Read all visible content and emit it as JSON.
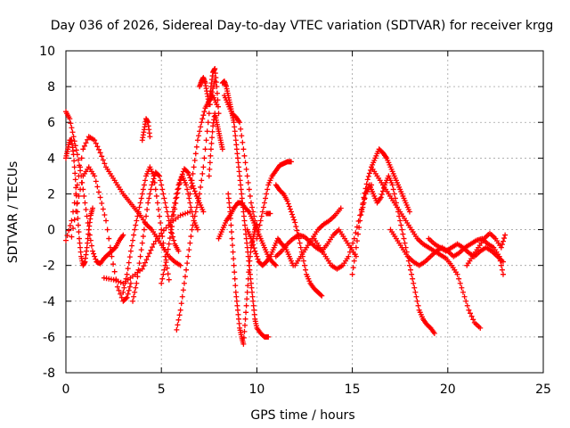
{
  "chart_data": {
    "type": "scatter",
    "title": "Day 036 of 2026, Sidereal Day-to-day VTEC variation (SDTVAR) for receiver krgg",
    "xlabel": "GPS time / hours",
    "ylabel": "SDTVAR / TECUs",
    "xlim": [
      0,
      25
    ],
    "ylim": [
      -8,
      10
    ],
    "xticks": [
      "0",
      "5",
      "10",
      "15",
      "20",
      "25"
    ],
    "yticks": [
      "-8",
      "-6",
      "-4",
      "-2",
      "0",
      "2",
      "4",
      "6",
      "8",
      "10"
    ],
    "grid": true,
    "marker": "+",
    "color": "#ff0000",
    "series": [
      {
        "name": "s1",
        "x": [
          0.0,
          0.2,
          0.4,
          0.6,
          0.8,
          1.0,
          1.2,
          1.4,
          1.6,
          1.8,
          2.0,
          2.2,
          2.4,
          2.6,
          2.8,
          3.0
        ],
        "y": [
          6.6,
          6.2,
          5.2,
          4.2,
          3.0,
          1.5,
          0.0,
          -1.2,
          -1.8,
          -1.9,
          -1.6,
          -1.4,
          -1.2,
          -1.0,
          -0.6,
          -0.3
        ]
      },
      {
        "name": "s2",
        "x": [
          0.0,
          0.1,
          0.2,
          0.3,
          0.4,
          0.5,
          0.6,
          0.7,
          0.8,
          0.9,
          1.0,
          1.1,
          1.2,
          1.3,
          1.4
        ],
        "y": [
          4.0,
          4.5,
          5.0,
          5.0,
          4.2,
          2.8,
          1.0,
          -0.5,
          -1.5,
          -2.0,
          -1.8,
          -1.0,
          0.0,
          0.8,
          1.2
        ]
      },
      {
        "name": "s3",
        "x": [
          0.0,
          0.3,
          0.6,
          0.9,
          1.2,
          1.5,
          1.8,
          2.1,
          2.4,
          2.7,
          3.0,
          3.3,
          3.6,
          3.9,
          4.2,
          4.5,
          4.8,
          5.1,
          5.4,
          5.7,
          6.0
        ],
        "y": [
          -0.6,
          0.5,
          2.5,
          4.5,
          5.2,
          5.0,
          4.3,
          3.5,
          3.0,
          2.5,
          2.0,
          1.6,
          1.2,
          0.8,
          0.3,
          0.0,
          -0.5,
          -1.0,
          -1.5,
          -1.8,
          -2.0
        ]
      },
      {
        "name": "s4",
        "x": [
          0.3,
          0.6,
          0.9,
          1.2,
          1.5,
          1.8,
          2.1,
          2.4,
          2.7,
          3.0,
          3.2,
          3.4
        ],
        "y": [
          -0.4,
          1.5,
          3.0,
          3.5,
          3.0,
          1.8,
          0.5,
          -1.5,
          -3.2,
          -4.0,
          -3.8,
          -3.0
        ]
      },
      {
        "name": "s5",
        "x": [
          2.0,
          2.5,
          3.0,
          3.5,
          4.0,
          4.3,
          4.6,
          5.0,
          5.5,
          6.0,
          6.5
        ],
        "y": [
          -2.7,
          -2.8,
          -3.0,
          -2.6,
          -2.2,
          -1.5,
          -0.8,
          -0.2,
          0.4,
          0.8,
          1.0
        ]
      },
      {
        "name": "s6",
        "x": [
          3.0,
          3.2,
          3.4,
          3.6,
          3.8,
          4.0,
          4.2,
          4.4,
          4.6,
          4.8,
          5.0,
          5.2,
          5.4
        ],
        "y": [
          -3.5,
          -2.5,
          -1.2,
          0.0,
          1.0,
          2.0,
          3.0,
          3.5,
          3.0,
          1.5,
          0.0,
          -1.5,
          -2.8
        ]
      },
      {
        "name": "s7",
        "x": [
          3.5,
          3.7,
          3.9,
          4.1,
          4.3,
          4.5,
          4.7,
          4.9,
          5.1,
          5.3,
          5.5,
          5.7,
          5.9
        ],
        "y": [
          -4.0,
          -3.0,
          -1.5,
          0.0,
          1.5,
          2.5,
          3.2,
          3.0,
          2.0,
          1.0,
          0.0,
          -0.8,
          -1.2
        ]
      },
      {
        "name": "s8",
        "x": [
          4.0,
          4.1,
          4.2,
          4.3,
          4.4
        ],
        "y": [
          5.0,
          5.6,
          6.2,
          6.0,
          5.2
        ]
      },
      {
        "name": "s9",
        "x": [
          5.0,
          5.2,
          5.4,
          5.6,
          5.8,
          6.0,
          6.2,
          6.4,
          6.6,
          6.8,
          7.0,
          7.2
        ],
        "y": [
          -3.0,
          -2.0,
          -0.8,
          0.5,
          1.8,
          2.8,
          3.4,
          3.2,
          2.6,
          2.0,
          1.5,
          1.0
        ]
      },
      {
        "name": "s10",
        "x": [
          5.8,
          6.0,
          6.2,
          6.4,
          6.6,
          6.8,
          7.0,
          7.2,
          7.4,
          7.6,
          7.8
        ],
        "y": [
          -5.6,
          -4.5,
          -3.0,
          -1.5,
          0.0,
          1.0,
          2.0,
          3.5,
          5.5,
          7.5,
          8.3
        ]
      },
      {
        "name": "s11",
        "x": [
          5.5,
          5.7,
          5.9,
          6.1,
          6.3,
          6.5,
          6.7,
          6.9
        ],
        "y": [
          0.5,
          1.5,
          2.5,
          3.0,
          2.5,
          1.5,
          0.5,
          0.0
        ]
      },
      {
        "name": "s12",
        "x": [
          6.5,
          6.7,
          6.9,
          7.1,
          7.3,
          7.5,
          7.7,
          7.9
        ],
        "y": [
          2.0,
          3.5,
          5.0,
          6.0,
          6.8,
          7.2,
          7.5,
          7.0
        ]
      },
      {
        "name": "s13",
        "x": [
          7.0,
          7.1,
          7.2,
          7.3,
          7.4,
          7.5,
          7.6,
          7.7,
          7.8,
          7.9,
          8.0
        ],
        "y": [
          8.0,
          8.3,
          8.5,
          8.2,
          7.6,
          7.0,
          8.0,
          8.8,
          9.0,
          8.0,
          6.5
        ]
      },
      {
        "name": "s14",
        "x": [
          7.5,
          7.6,
          7.7,
          7.8,
          7.9,
          8.0,
          8.1,
          8.2
        ],
        "y": [
          3.0,
          4.5,
          5.8,
          6.5,
          6.0,
          5.5,
          5.0,
          4.5
        ]
      },
      {
        "name": "s15",
        "x": [
          8.2,
          8.3,
          8.4,
          8.5,
          8.6,
          8.7,
          8.8,
          8.9,
          9.0,
          9.1,
          9.2,
          9.3,
          9.4,
          9.5,
          9.6,
          9.7,
          9.8,
          9.9,
          10.0,
          10.2,
          10.4,
          10.6
        ],
        "y": [
          8.2,
          8.3,
          8.0,
          7.5,
          7.0,
          6.5,
          6.0,
          5.0,
          4.0,
          3.0,
          2.0,
          1.0,
          0.0,
          -1.0,
          -2.0,
          -3.0,
          -4.0,
          -5.0,
          -5.5,
          -5.8,
          -6.0,
          -6.0
        ]
      },
      {
        "name": "s16",
        "x": [
          8.3,
          8.5,
          8.7,
          8.9,
          9.1,
          9.3,
          9.5,
          9.7,
          9.9
        ],
        "y": [
          7.5,
          7.0,
          6.5,
          6.3,
          6.0,
          4.5,
          3.0,
          1.5,
          0.5
        ]
      },
      {
        "name": "s17",
        "x": [
          8.5,
          8.6,
          8.7,
          8.8,
          8.9,
          9.0,
          9.1,
          9.2,
          9.3,
          9.4,
          9.5,
          9.6,
          9.7,
          9.8,
          9.9,
          10.0
        ],
        "y": [
          2.0,
          1.0,
          -0.5,
          -2.0,
          -3.5,
          -4.5,
          -5.5,
          -6.0,
          -6.4,
          -5.0,
          -3.5,
          -2.0,
          -1.0,
          -0.5,
          0.0,
          0.3
        ]
      },
      {
        "name": "s18",
        "x": [
          8.0,
          8.2,
          8.4,
          8.6,
          8.8,
          9.0,
          9.2,
          9.4,
          9.6,
          9.8,
          10.0,
          10.2,
          10.4,
          10.6,
          10.8,
          11.0
        ],
        "y": [
          -0.5,
          0.0,
          0.5,
          0.8,
          1.2,
          1.5,
          1.5,
          1.2,
          1.0,
          0.5,
          0.0,
          -0.5,
          -1.0,
          -1.5,
          -1.8,
          -2.0
        ]
      },
      {
        "name": "s19",
        "x": [
          9.5,
          9.7,
          9.9,
          10.1,
          10.3,
          10.5,
          10.7,
          10.9,
          11.1,
          11.3,
          11.5,
          11.7,
          11.9
        ],
        "y": [
          0.0,
          -0.5,
          -1.2,
          -1.8,
          -2.0,
          -1.8,
          -1.5,
          -1.0,
          -0.5,
          -0.8,
          -1.0,
          -1.5,
          -2.0
        ]
      },
      {
        "name": "s20",
        "x": [
          10.0,
          10.2,
          10.4,
          10.6,
          10.8,
          11.0,
          11.2,
          11.4,
          11.6,
          11.8
        ],
        "y": [
          -0.5,
          0.5,
          1.5,
          2.5,
          3.0,
          3.3,
          3.6,
          3.7,
          3.8,
          3.8
        ]
      },
      {
        "name": "s21",
        "x": [
          11.0,
          11.2,
          11.4,
          11.6,
          11.8,
          12.0,
          12.2,
          12.4,
          12.6,
          12.8,
          13.0,
          13.2,
          13.4
        ],
        "y": [
          2.5,
          2.2,
          2.0,
          1.6,
          1.0,
          0.4,
          -0.5,
          -1.5,
          -2.5,
          -3.0,
          -3.3,
          -3.5,
          -3.7
        ]
      },
      {
        "name": "s22",
        "x": [
          10.5,
          10.7
        ],
        "y": [
          0.9,
          0.9
        ]
      },
      {
        "name": "s23",
        "x": [
          11.0,
          11.3,
          11.6,
          11.9,
          12.2,
          12.5,
          12.8,
          13.1,
          13.4,
          13.7,
          14.0,
          14.3,
          14.6,
          14.9,
          15.2
        ],
        "y": [
          -1.5,
          -1.2,
          -0.8,
          -0.5,
          -0.3,
          -0.4,
          -0.7,
          -1.0,
          -1.2,
          -0.8,
          -0.3,
          0.0,
          -0.5,
          -1.0,
          -1.5
        ]
      },
      {
        "name": "s24",
        "x": [
          12.0,
          12.3,
          12.6,
          12.9,
          13.2,
          13.5,
          13.8,
          14.1,
          14.4
        ],
        "y": [
          -2.0,
          -1.5,
          -1.0,
          -0.5,
          0.0,
          0.3,
          0.5,
          0.8,
          1.2
        ]
      },
      {
        "name": "s25",
        "x": [
          13.0,
          13.3,
          13.6,
          13.9,
          14.2,
          14.5,
          14.8,
          15.1,
          15.4,
          15.7,
          16.0
        ],
        "y": [
          -0.5,
          -1.0,
          -1.5,
          -2.0,
          -2.2,
          -2.0,
          -1.5,
          -0.5,
          0.8,
          2.0,
          2.5
        ]
      },
      {
        "name": "s26",
        "x": [
          15.0,
          15.2,
          15.4,
          15.6,
          15.8,
          16.0,
          16.2,
          16.4,
          16.6,
          16.8,
          17.0,
          17.2,
          17.4,
          17.6,
          17.8,
          18.0
        ],
        "y": [
          -2.5,
          -1.0,
          0.5,
          1.8,
          2.8,
          3.5,
          4.0,
          4.5,
          4.3,
          4.0,
          3.5,
          3.0,
          2.5,
          2.0,
          1.5,
          1.0
        ]
      },
      {
        "name": "s27",
        "x": [
          15.5,
          15.7,
          15.9,
          16.1,
          16.3,
          16.5,
          16.7,
          16.9,
          17.1,
          17.3,
          17.5,
          17.7,
          17.9,
          18.1,
          18.3,
          18.5,
          18.7,
          18.9,
          19.1,
          19.3
        ],
        "y": [
          1.0,
          2.0,
          2.5,
          2.0,
          1.5,
          1.8,
          2.5,
          3.0,
          2.5,
          1.5,
          0.5,
          -0.5,
          -1.5,
          -2.5,
          -3.5,
          -4.5,
          -5.0,
          -5.3,
          -5.5,
          -5.8
        ]
      },
      {
        "name": "s28",
        "x": [
          16.0,
          16.3,
          16.6,
          16.9,
          17.2,
          17.5,
          17.8,
          18.1,
          18.4,
          18.7,
          19.0,
          19.3,
          19.6,
          19.9,
          20.2,
          20.5,
          20.8,
          21.1,
          21.4,
          21.7
        ],
        "y": [
          3.5,
          3.0,
          2.5,
          2.0,
          1.5,
          1.0,
          0.5,
          0.0,
          -0.5,
          -0.8,
          -1.0,
          -1.2,
          -1.4,
          -1.6,
          -2.0,
          -2.5,
          -3.5,
          -4.5,
          -5.2,
          -5.5
        ]
      },
      {
        "name": "s29",
        "x": [
          17.0,
          17.3,
          17.6,
          17.9,
          18.2,
          18.5,
          18.8,
          19.1,
          19.4,
          19.7,
          20.0,
          20.3,
          20.6,
          20.9,
          21.2,
          21.5,
          21.8,
          22.1,
          22.4,
          22.7,
          22.9
        ],
        "y": [
          0.0,
          -0.5,
          -1.0,
          -1.5,
          -1.8,
          -2.0,
          -1.8,
          -1.5,
          -1.2,
          -1.0,
          -1.2,
          -1.5,
          -1.3,
          -1.0,
          -0.8,
          -0.6,
          -0.5,
          -0.8,
          -1.0,
          -1.5,
          -2.5
        ]
      },
      {
        "name": "s30",
        "x": [
          19.0,
          19.3,
          19.6,
          19.9,
          20.2,
          20.5,
          20.8,
          21.1,
          21.4,
          21.7,
          22.0,
          22.3,
          22.6,
          22.9
        ],
        "y": [
          -0.5,
          -0.8,
          -1.0,
          -1.2,
          -1.0,
          -0.8,
          -1.0,
          -1.3,
          -1.5,
          -1.2,
          -1.0,
          -1.2,
          -1.5,
          -1.8
        ]
      },
      {
        "name": "s31",
        "x": [
          21.0,
          21.3,
          21.6,
          21.9,
          22.2,
          22.5,
          22.8,
          23.0
        ],
        "y": [
          -2.0,
          -1.5,
          -1.0,
          -0.5,
          -0.2,
          -0.5,
          -1.0,
          -0.3
        ]
      }
    ]
  }
}
